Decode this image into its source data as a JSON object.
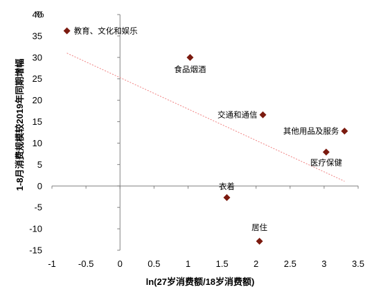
{
  "chart_data": {
    "type": "scatter",
    "title": "",
    "xlabel": "ln(27岁消费额/18岁消费额)",
    "ylabel": "1-8月消费规模较2019年同期增幅",
    "y_unit": "%",
    "xlim": [
      -1,
      3.5
    ],
    "ylim": [
      -15,
      40
    ],
    "x_ticks": [
      "-1",
      "-0.5",
      "0",
      "0.5",
      "1",
      "1.5",
      "2",
      "2.5",
      "3",
      "3.5"
    ],
    "y_ticks": [
      "40",
      "35",
      "30",
      "25",
      "20",
      "15",
      "10",
      "5",
      "0",
      "-5",
      "-10",
      "-15"
    ],
    "grid": false,
    "legend": "none",
    "points": [
      {
        "label": "教育、文化和娱乐",
        "x": -0.78,
        "y": 36.2
      },
      {
        "label": "食品烟酒",
        "x": 1.03,
        "y": 30.0
      },
      {
        "label": "交通和通信",
        "x": 2.1,
        "y": 16.6
      },
      {
        "label": "其他用品及服务",
        "x": 3.3,
        "y": 12.8
      },
      {
        "label": "医疗保健",
        "x": 3.03,
        "y": 7.9
      },
      {
        "label": "衣着",
        "x": 1.57,
        "y": -2.7
      },
      {
        "label": "居住",
        "x": 2.05,
        "y": -12.9
      }
    ],
    "trendline": {
      "x": [
        -0.78,
        3.3
      ],
      "y": [
        31.0,
        1.1
      ]
    },
    "colors": {
      "marker": "#7B1A0F",
      "trendline": "#F08080",
      "axis": "#808080"
    }
  }
}
